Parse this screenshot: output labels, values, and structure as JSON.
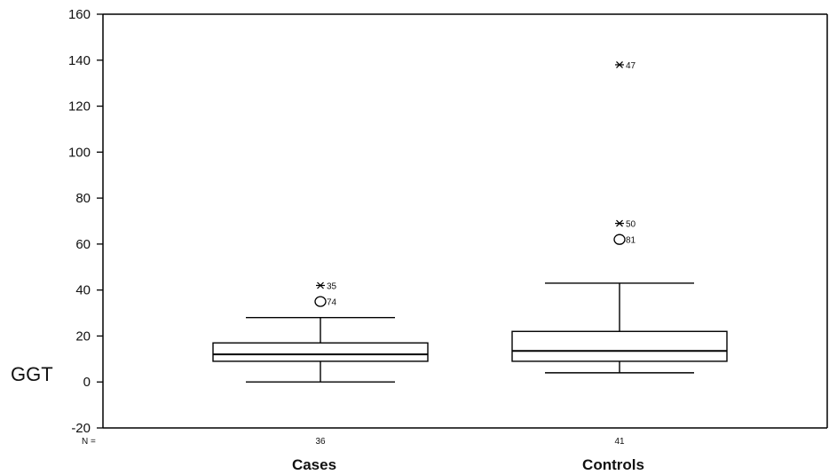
{
  "chart_data": {
    "type": "box",
    "title": "",
    "ylabel": "GGT",
    "xlabel": "",
    "ylim": [
      -20,
      160
    ],
    "yticks": [
      -20,
      0,
      20,
      40,
      60,
      80,
      100,
      120,
      140,
      160
    ],
    "n_prefix": "N =",
    "grid": false,
    "groups": [
      {
        "name": "Cases",
        "n": "36",
        "whisker_low": 0,
        "q1": 9,
        "median": 12,
        "q3": 17,
        "whisker_high": 28,
        "outliers": [
          {
            "value": 42,
            "marker": "star",
            "label": "35"
          },
          {
            "value": 35,
            "marker": "circle",
            "label": "74"
          }
        ]
      },
      {
        "name": "Controls",
        "n": "41",
        "whisker_low": 4,
        "q1": 9,
        "median": 13.5,
        "q3": 22,
        "whisker_high": 43,
        "outliers": [
          {
            "value": 138,
            "marker": "star",
            "label": "47"
          },
          {
            "value": 69,
            "marker": "star",
            "label": "50"
          },
          {
            "value": 62,
            "marker": "circle",
            "label": "81"
          }
        ]
      }
    ]
  }
}
